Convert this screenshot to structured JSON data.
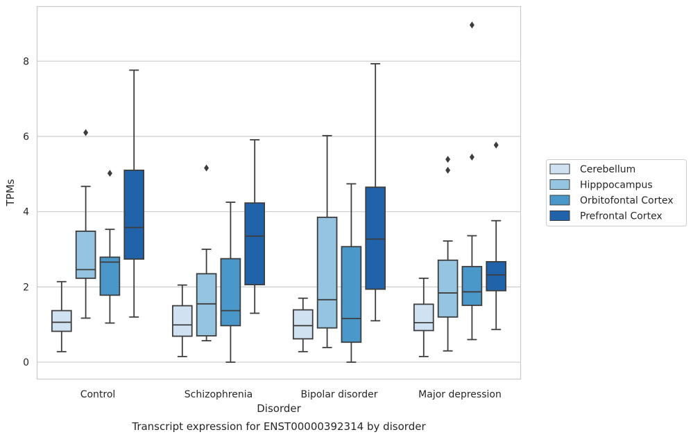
{
  "chart_data": {
    "type": "box",
    "title": "Transcript expression for ENST00000392314 by disorder",
    "xlabel": "Disorder",
    "ylabel": "TPMs",
    "ylim": [
      -0.45,
      9.45
    ],
    "yticks": [
      0,
      2,
      4,
      6,
      8
    ],
    "grid": "horizontal",
    "legend_position": "right",
    "categories": [
      "Control",
      "Schizophrenia",
      "Bipolar disorder",
      "Major depression"
    ],
    "series": [
      {
        "name": "Cerebellum",
        "color": "#d0e1f2",
        "boxes": [
          {
            "whislo": 0.28,
            "q1": 0.82,
            "med": 1.06,
            "q3": 1.37,
            "whishi": 2.14,
            "fliers": []
          },
          {
            "whislo": 0.15,
            "q1": 0.69,
            "med": 0.99,
            "q3": 1.5,
            "whishi": 2.05,
            "fliers": []
          },
          {
            "whislo": 0.28,
            "q1": 0.62,
            "med": 0.97,
            "q3": 1.39,
            "whishi": 1.7,
            "fliers": []
          },
          {
            "whislo": 0.15,
            "q1": 0.84,
            "med": 1.05,
            "q3": 1.54,
            "whishi": 2.23,
            "fliers": []
          }
        ]
      },
      {
        "name": "Hipppocampus",
        "color": "#94c4df",
        "boxes": [
          {
            "whislo": 1.17,
            "q1": 2.23,
            "med": 2.46,
            "q3": 3.48,
            "whishi": 4.67,
            "fliers": [
              6.1
            ]
          },
          {
            "whislo": 0.57,
            "q1": 0.7,
            "med": 1.55,
            "q3": 2.35,
            "whishi": 3.0,
            "fliers": [
              5.16
            ]
          },
          {
            "whislo": 0.39,
            "q1": 0.91,
            "med": 1.66,
            "q3": 3.85,
            "whishi": 6.02,
            "fliers": []
          },
          {
            "whislo": 0.3,
            "q1": 1.2,
            "med": 1.84,
            "q3": 2.71,
            "whishi": 3.22,
            "fliers": [
              5.1,
              5.39
            ]
          }
        ]
      },
      {
        "name": "Orbitofontal Cortex",
        "color": "#4a98c9",
        "boxes": [
          {
            "whislo": 1.04,
            "q1": 1.78,
            "med": 2.66,
            "q3": 2.79,
            "whishi": 3.53,
            "fliers": [
              5.02
            ]
          },
          {
            "whislo": 0.0,
            "q1": 0.97,
            "med": 1.37,
            "q3": 2.75,
            "whishi": 4.25,
            "fliers": []
          },
          {
            "whislo": 0.0,
            "q1": 0.53,
            "med": 1.16,
            "q3": 3.07,
            "whishi": 4.74,
            "fliers": []
          },
          {
            "whislo": 0.6,
            "q1": 1.51,
            "med": 1.87,
            "q3": 2.54,
            "whishi": 3.36,
            "fliers": [
              5.45,
              8.96
            ]
          }
        ]
      },
      {
        "name": "Prefrontal Cortex",
        "color": "#2163aa",
        "boxes": [
          {
            "whislo": 1.2,
            "q1": 2.74,
            "med": 3.58,
            "q3": 5.1,
            "whishi": 7.76,
            "fliers": []
          },
          {
            "whislo": 1.3,
            "q1": 2.06,
            "med": 3.35,
            "q3": 4.23,
            "whishi": 5.91,
            "fliers": []
          },
          {
            "whislo": 1.1,
            "q1": 1.94,
            "med": 3.27,
            "q3": 4.65,
            "whishi": 7.93,
            "fliers": []
          },
          {
            "whislo": 0.87,
            "q1": 1.9,
            "med": 2.32,
            "q3": 2.67,
            "whishi": 3.76,
            "fliers": [
              5.77
            ]
          }
        ]
      }
    ]
  }
}
